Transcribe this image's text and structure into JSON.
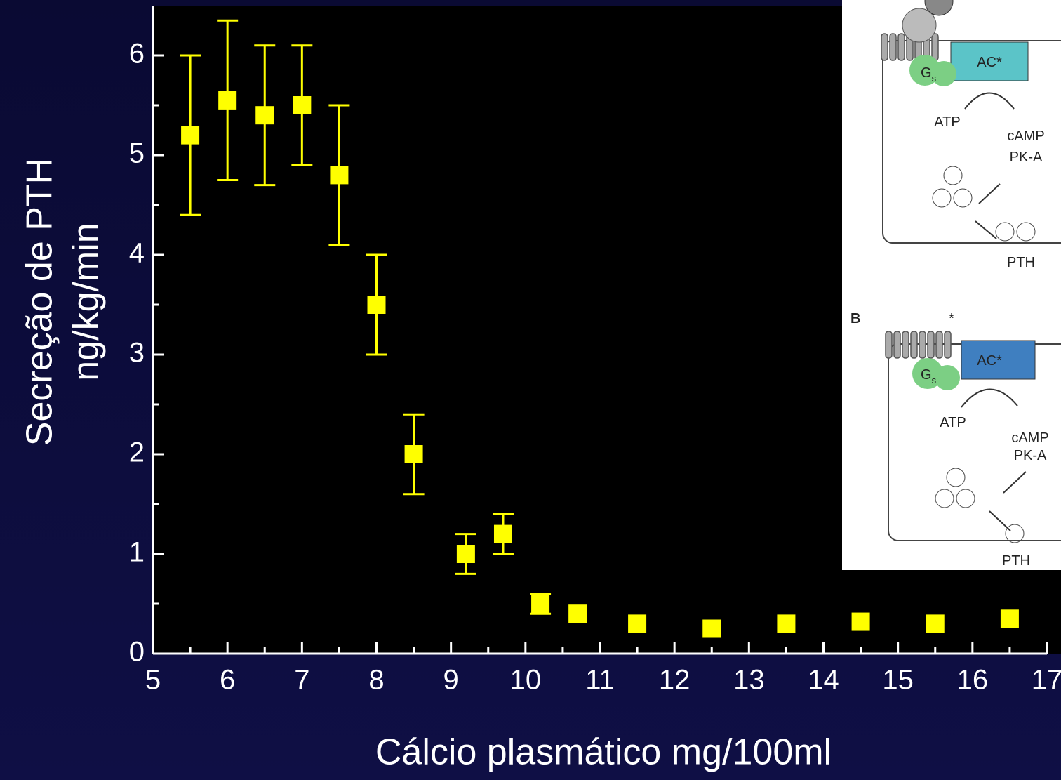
{
  "chart_data": {
    "type": "scatter",
    "xlabel": "Cálcio plasmático mg/100ml",
    "ylabel": [
      "Secreção de PTH",
      "ng/kg/min"
    ],
    "x": [
      5.5,
      6,
      6.5,
      7,
      7.5,
      8,
      8.5,
      9.2,
      9.7,
      10.2,
      10.7,
      11.5,
      12.5,
      13.5,
      14.5,
      15.5,
      16.5
    ],
    "series": [
      {
        "color": "#ffff00",
        "values": [
          5.2,
          5.55,
          5.4,
          5.5,
          4.8,
          3.5,
          2.0,
          1.0,
          1.2,
          0.5,
          0.4,
          0.3,
          0.25,
          0.3,
          0.32,
          0.3,
          0.35
        ],
        "errors": [
          0.8,
          0.8,
          0.7,
          0.6,
          0.7,
          0.5,
          0.4,
          0.2,
          0.2,
          0.1,
          null,
          null,
          null,
          null,
          null,
          null,
          null
        ]
      }
    ],
    "xlim": [
      5,
      17
    ],
    "ylim": [
      0,
      6.5
    ],
    "xticks": [
      5,
      6,
      7,
      8,
      9,
      10,
      11,
      12,
      13,
      14,
      15,
      16,
      17
    ],
    "yticks": [
      0,
      1,
      2,
      3,
      4,
      5,
      6
    ],
    "xminorticks": [
      5.5,
      6.5,
      7.5,
      8.5,
      9.5,
      10.5,
      11.5,
      12.5,
      13.5,
      14.5,
      15.5,
      16.5
    ],
    "yminorticks": [
      0.5,
      1.5,
      2.5,
      3.5,
      4.5,
      5.5
    ]
  },
  "inset": {
    "panel_a": {
      "enzyme": "AC*",
      "protein": "G",
      "protein_sub": "s",
      "substrate": "ATP",
      "messenger": "cAMP",
      "kinase": "PK-A",
      "hormone": "PTH"
    },
    "panel_b": {
      "label": "B",
      "mutation": "*",
      "enzyme": "AC*",
      "protein": "G",
      "protein_sub": "s",
      "substrate": "ATP",
      "messenger": "cAMP",
      "kinase": "PK-A",
      "hormone": "PTH"
    }
  }
}
